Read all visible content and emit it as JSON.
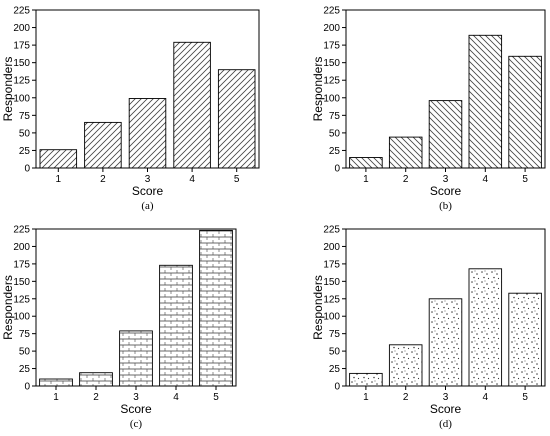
{
  "chart_data": [
    {
      "panel": "(a)",
      "type": "bar",
      "categories": [
        "1",
        "2",
        "3",
        "4",
        "5"
      ],
      "values": [
        26,
        65,
        99,
        179,
        140
      ],
      "xlabel": "Score",
      "ylabel": "Responders",
      "ylim": [
        0,
        225
      ],
      "yticks": [
        "0",
        "25",
        "50",
        "75",
        "100",
        "125",
        "150",
        "175",
        "200",
        "225"
      ],
      "pattern": "diagonal-right",
      "grid": false,
      "legend": "none"
    },
    {
      "panel": "(b)",
      "type": "bar",
      "categories": [
        "1",
        "2",
        "3",
        "4",
        "5"
      ],
      "values": [
        15,
        44,
        96,
        189,
        159
      ],
      "xlabel": "Score",
      "ylabel": "Responders",
      "ylim": [
        0,
        225
      ],
      "yticks": [
        "0",
        "25",
        "50",
        "75",
        "100",
        "125",
        "150",
        "175",
        "200",
        "225"
      ],
      "pattern": "diagonal-left",
      "grid": false,
      "legend": "none"
    },
    {
      "panel": "(c)",
      "type": "bar",
      "categories": [
        "1",
        "2",
        "3",
        "4",
        "5"
      ],
      "values": [
        10,
        19,
        79,
        173,
        223
      ],
      "xlabel": "Score",
      "ylabel": "Responders",
      "ylim": [
        0,
        225
      ],
      "yticks": [
        "0",
        "25",
        "50",
        "75",
        "100",
        "125",
        "150",
        "175",
        "200",
        "225"
      ],
      "pattern": "horizontal-brick",
      "grid": false,
      "legend": "none"
    },
    {
      "panel": "(d)",
      "type": "bar",
      "categories": [
        "1",
        "2",
        "3",
        "4",
        "5"
      ],
      "values": [
        18,
        59,
        125,
        168,
        133
      ],
      "xlabel": "Score",
      "ylabel": "Responders",
      "ylim": [
        0,
        225
      ],
      "yticks": [
        "0",
        "25",
        "50",
        "75",
        "100",
        "125",
        "150",
        "175",
        "200",
        "225"
      ],
      "pattern": "dots",
      "grid": false,
      "legend": "none"
    }
  ],
  "colors": {
    "stroke": "#000000",
    "background": "#ffffff",
    "pattern": "#444444"
  }
}
